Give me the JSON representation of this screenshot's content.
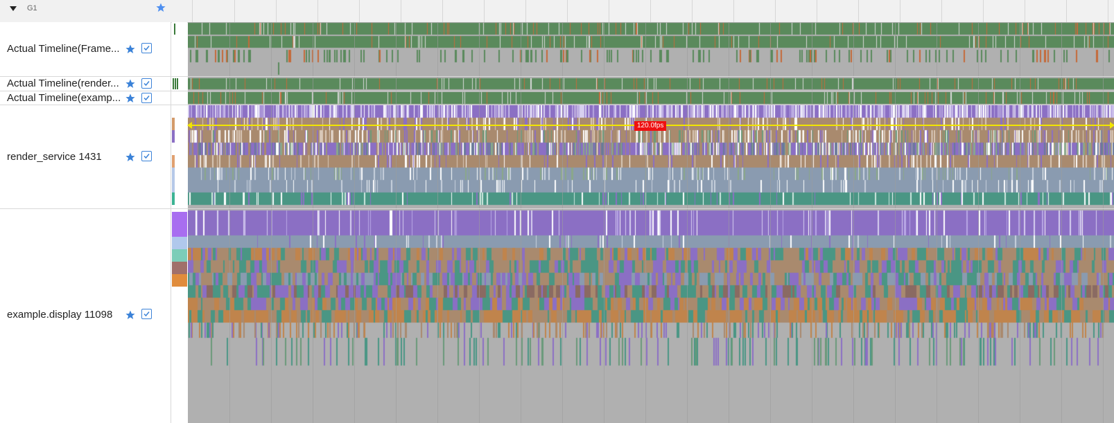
{
  "group": {
    "name": "G1",
    "collapsed": false
  },
  "rows": [
    {
      "label": "Actual Timeline(Frame...",
      "starred": true,
      "checked": true
    },
    {
      "label": "Actual Timeline(render...",
      "starred": true,
      "checked": true
    },
    {
      "label": "Actual Timeline(examp...",
      "starred": true,
      "checked": true
    },
    {
      "label": "render_service 1431",
      "starred": true,
      "checked": true
    },
    {
      "label": "example.display 11098",
      "starred": true,
      "checked": true
    }
  ],
  "fps": {
    "label": "120.0fps"
  },
  "colors": {
    "accent": "#3b82d8",
    "frame_green": "#5a8a5c",
    "frame_orange": "#c46a3a",
    "lane_purple": "#8b6fc4",
    "lane_brown": "#a98a6e",
    "lane_steel": "#8a9bb0",
    "lane_teal": "#4a9684",
    "lane_orange": "#c0844c",
    "track_bg": "#b0b0b0",
    "fps_line": "#f2e500",
    "fps_badge": "#ee1111"
  }
}
